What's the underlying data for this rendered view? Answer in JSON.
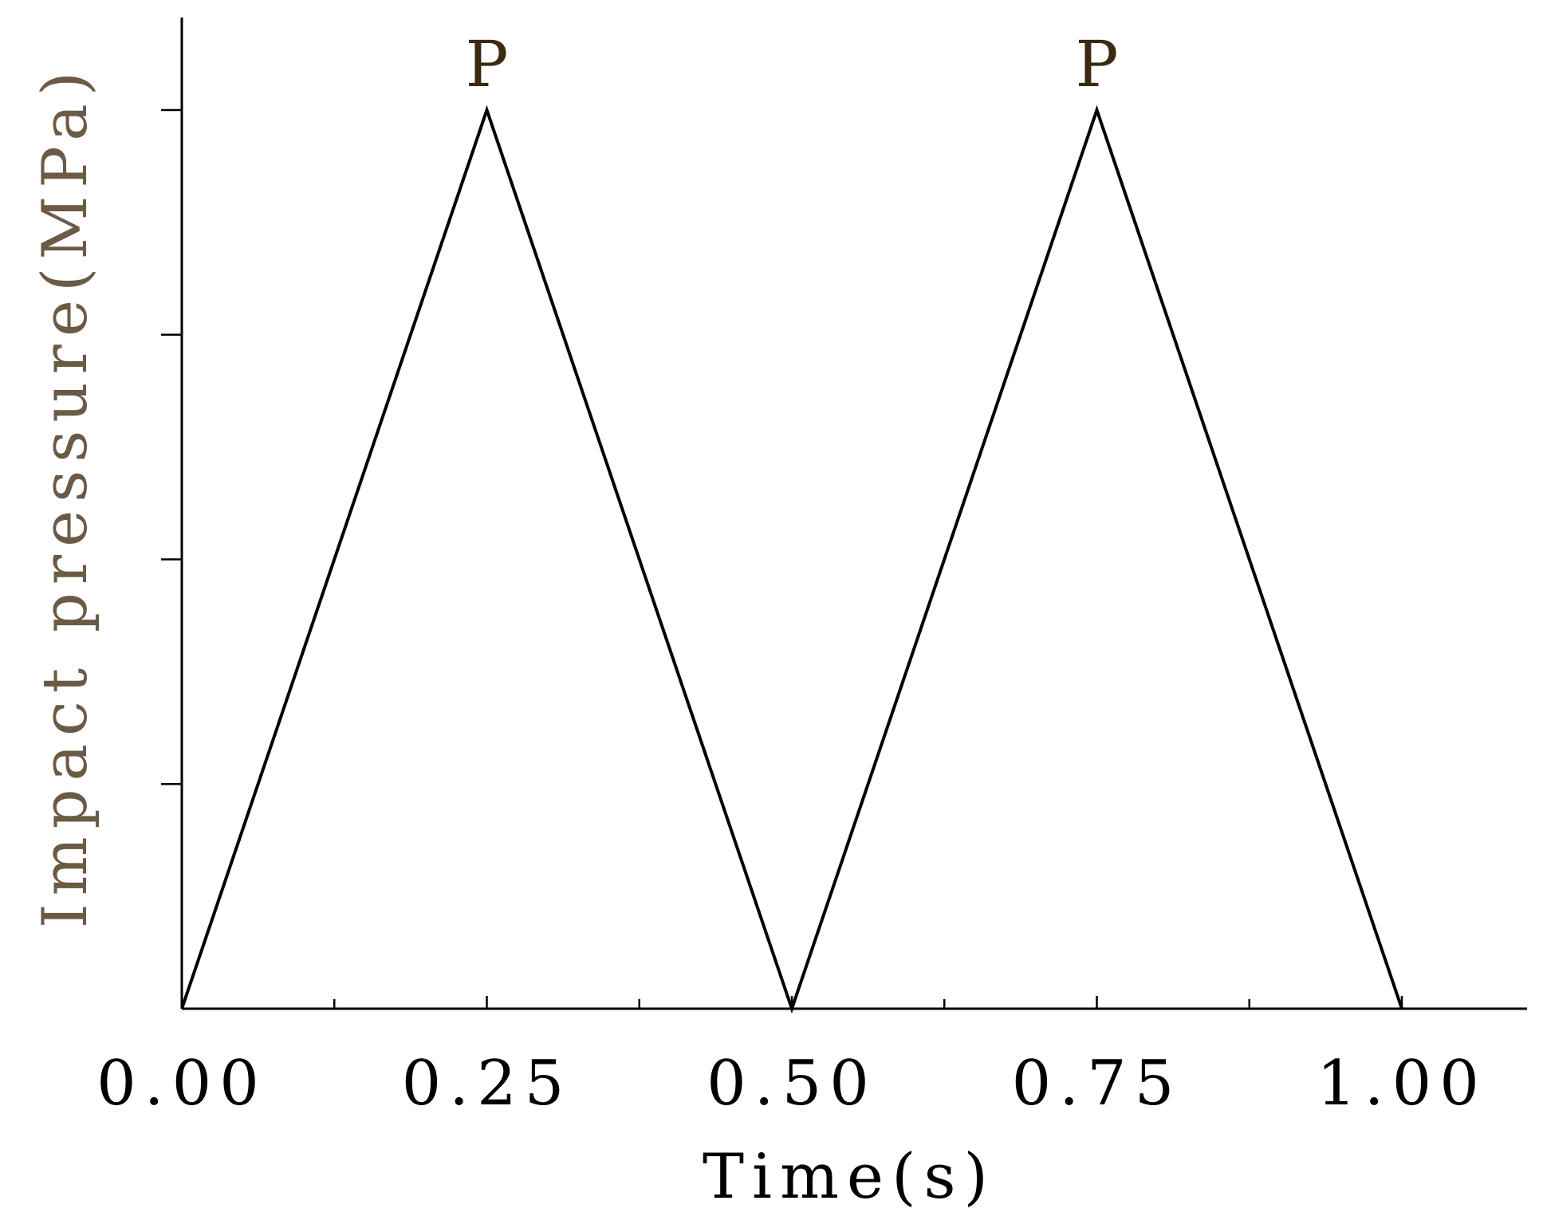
{
  "chart_data": {
    "type": "line",
    "xlabel": "Time(s)",
    "ylabel": "Impact pressure(MPa)",
    "xlim": [
      0,
      1.1
    ],
    "x_ticks": [
      "0.00",
      "0.25",
      "0.50",
      "0.75",
      "1.00"
    ],
    "x_minor_ticks": [
      0.125,
      0.375,
      0.625,
      0.875
    ],
    "y_ticks_count": 4,
    "ylim": [
      0,
      1
    ],
    "grid": false,
    "series": [
      {
        "x": [
          0.0,
          0.25,
          0.5,
          0.75,
          1.0
        ],
        "y": [
          0,
          1,
          0,
          1,
          0
        ]
      }
    ],
    "annotations": [
      {
        "text": "P",
        "x": 0.25,
        "y": 1
      },
      {
        "text": "P",
        "x": 0.75,
        "y": 1
      }
    ],
    "colors": {
      "line": "#000000",
      "axis_title": "#6b5a45",
      "peak_label": "#3a2a12"
    }
  }
}
